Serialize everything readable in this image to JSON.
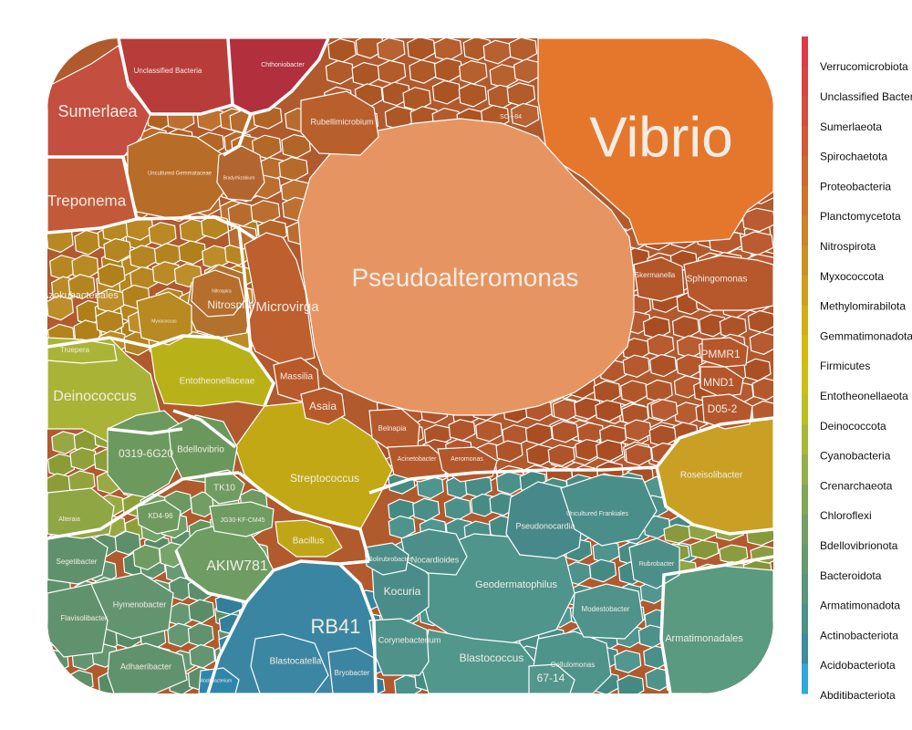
{
  "chart_data": {
    "type": "voronoi-treemap",
    "cells": [
      {
        "label": "Vibrio",
        "group": "Proteobacteria",
        "color": "#E5772D"
      },
      {
        "label": "Pseudoalteromonas",
        "group": "Proteobacteria",
        "color": "#E69562"
      },
      {
        "label": "RB41",
        "group": "Acidobacteriota",
        "color": "#3A86A2"
      },
      {
        "label": "AKIW781",
        "group": "Chloroflexi",
        "color": "#6E9C62"
      },
      {
        "label": "Sumerlaea",
        "group": "Sumerlaeota",
        "color": "#C44E3F"
      },
      {
        "label": "Treponema",
        "group": "Spirochaetota",
        "color": "#C25A3A"
      },
      {
        "label": "Deinococcus",
        "group": "Deinococcota",
        "color": "#A9B436"
      },
      {
        "label": "Microvirga",
        "group": "Proteobacteria",
        "color": "#BE5F2E"
      },
      {
        "label": "Nitrospira",
        "group": "Nitrospirota",
        "color": "#B2712C"
      },
      {
        "label": "Streptococcus",
        "group": "Firmicutes",
        "color": "#C2A815"
      },
      {
        "label": "Entotheonellaceae",
        "group": "Entotheonellaeota",
        "color": "#B8B218"
      },
      {
        "label": "0319-6G20",
        "group": "Bdellovibrionota",
        "color": "#6C9A5E"
      },
      {
        "label": "Bdellovibrio",
        "group": "Bdellovibrionota",
        "color": "#6A985C"
      },
      {
        "label": "Geodermatophilus",
        "group": "Actinobacteriota",
        "color": "#4F958C"
      },
      {
        "label": "Blastococcus",
        "group": "Actinobacteriota",
        "color": "#51978C"
      },
      {
        "label": "Kocuria",
        "group": "Actinobacteriota",
        "color": "#4A8D88"
      },
      {
        "label": "Corynebacterium",
        "group": "Actinobacteriota",
        "color": "#4E928A"
      },
      {
        "label": "Pseudonocardia",
        "group": "Actinobacteriota",
        "color": "#47898A"
      },
      {
        "label": "Nocardioides",
        "group": "Actinobacteriota",
        "color": "#4C8F89"
      },
      {
        "label": "Armatimonadales",
        "group": "Armatimonadota",
        "color": "#5A9A80"
      },
      {
        "label": "Roseisolibacter",
        "group": "Gemmatimonadota",
        "color": "#C9A024"
      },
      {
        "label": "Sphingomonas",
        "group": "Proteobacteria",
        "color": "#B6582C"
      },
      {
        "label": "Skermanella",
        "group": "Proteobacteria",
        "color": "#B3562A"
      },
      {
        "label": "PMMR1",
        "group": "Proteobacteria",
        "color": "#B5572B"
      },
      {
        "label": "MND1",
        "group": "Proteobacteria",
        "color": "#B4562A"
      },
      {
        "label": "D05-2",
        "group": "Proteobacteria",
        "color": "#B4582C"
      },
      {
        "label": "Rubellimicrobium",
        "group": "Proteobacteria",
        "color": "#B95F2C"
      },
      {
        "label": "Chthoniobacter",
        "group": "Verrucomicrobiota",
        "color": "#B2303D"
      },
      {
        "label": "Unclassified Bacteria",
        "group": "Unclassified Bacteria",
        "color": "#B83C3A"
      },
      {
        "label": "Massilia",
        "group": "Proteobacteria",
        "color": "#B85A2B"
      },
      {
        "label": "Asaia",
        "group": "Proteobacteria",
        "color": "#B75A2B"
      },
      {
        "label": "Belnapia",
        "group": "Proteobacteria",
        "color": "#B55A2C"
      },
      {
        "label": "Acinetobacter",
        "group": "Proteobacteria",
        "color": "#B3582B"
      },
      {
        "label": "Aeromonas",
        "group": "Proteobacteria",
        "color": "#B2572B"
      },
      {
        "label": "Bacillus",
        "group": "Firmicutes",
        "color": "#BFA616"
      },
      {
        "label": "TK10",
        "group": "Chloroflexi",
        "color": "#6F9C60"
      },
      {
        "label": "KD4-96",
        "group": "Chloroflexi",
        "color": "#6E9A60"
      },
      {
        "label": "JG30-KF-CM45",
        "group": "Chloroflexi",
        "color": "#6F9C61"
      },
      {
        "label": "Hymenobacter",
        "group": "Bacteroidota",
        "color": "#62956F"
      },
      {
        "label": "Flavisolibacter",
        "group": "Bacteroidota",
        "color": "#60936D"
      },
      {
        "label": "Segetibacter",
        "group": "Bacteroidota",
        "color": "#5F926C"
      },
      {
        "label": "Adhaeribacter",
        "group": "Bacteroidota",
        "color": "#60936D"
      },
      {
        "label": "Blastocatella",
        "group": "Acidobacteriota",
        "color": "#3B86A3"
      },
      {
        "label": "Bryobacter",
        "group": "Acidobacteriota",
        "color": "#3C85A1"
      },
      {
        "label": "Cellulomonas",
        "group": "Actinobacteriota",
        "color": "#4F948B"
      },
      {
        "label": "Modestobacter",
        "group": "Actinobacteriota",
        "color": "#4F938A"
      },
      {
        "label": "Rubrobacter",
        "group": "Actinobacteriota",
        "color": "#4C8F89"
      },
      {
        "label": "67-14",
        "group": "Actinobacteriota",
        "color": "#52968C"
      },
      {
        "label": "Uncultured Frankiales",
        "group": "Actinobacteriota",
        "color": "#4A8E8A"
      },
      {
        "label": "Solirubrobacter",
        "group": "Actinobacteriota",
        "color": "#4B8D88"
      },
      {
        "label": "Truepera",
        "group": "Deinococcota",
        "color": "#AAB437"
      },
      {
        "label": "Alteraia",
        "group": "Cyanobacteria",
        "color": "#8FA644"
      },
      {
        "label": "Uncultured Gemmataceae",
        "group": "Planctomycetota",
        "color": "#B76C27"
      },
      {
        "label": "Bradyrhizobium",
        "group": "Proteobacteria",
        "color": "#B36530"
      },
      {
        "label": "Nitrospira",
        "group": "Nitrospirota",
        "color": "#B56E2C"
      },
      {
        "label": "Myxococcus",
        "group": "Myxococcota",
        "color": "#B78A22"
      },
      {
        "label": "Abditibacterium",
        "group": "Abditibacteriota",
        "color": "#2F86AC"
      }
    ],
    "fragment_labels": [
      "Azokubacteriales",
      "SC-I-84"
    ],
    "legend": [
      {
        "label": "Verrucomicrobiota",
        "color": "#DE3B47"
      },
      {
        "label": "Unclassified Bacteria",
        "color": "#DA4440"
      },
      {
        "label": "Sumerlaeota",
        "color": "#D54D3C"
      },
      {
        "label": "Spirochaetota",
        "color": "#D15A36"
      },
      {
        "label": "Proteobacteria",
        "color": "#CE6731"
      },
      {
        "label": "Planctomycetota",
        "color": "#CC742C"
      },
      {
        "label": "Nitrospirota",
        "color": "#CB8228"
      },
      {
        "label": "Myxococcota",
        "color": "#CB9024"
      },
      {
        "label": "Methylomirabilota",
        "color": "#CF9E1F"
      },
      {
        "label": "Gemmatimonadota",
        "color": "#D4AC16"
      },
      {
        "label": "Firmicutes",
        "color": "#D5B912"
      },
      {
        "label": "Entotheonellaeota",
        "color": "#CCBE16"
      },
      {
        "label": "Deinococcota",
        "color": "#BEBE23"
      },
      {
        "label": "Cyanobacteria",
        "color": "#A8B63A"
      },
      {
        "label": "Crenarchaeota",
        "color": "#93AE4B"
      },
      {
        "label": "Chloroflexi",
        "color": "#82A658"
      },
      {
        "label": "Bdellovibrionota",
        "color": "#739F65"
      },
      {
        "label": "Bacteroidota",
        "color": "#659A70"
      },
      {
        "label": "Armatimonadota",
        "color": "#59967D"
      },
      {
        "label": "Actinobacteriota",
        "color": "#4D9189"
      },
      {
        "label": "Acidobacteriota",
        "color": "#3F8C9A"
      },
      {
        "label": "Abditibacteriota",
        "color": "#31A7DE"
      }
    ]
  }
}
